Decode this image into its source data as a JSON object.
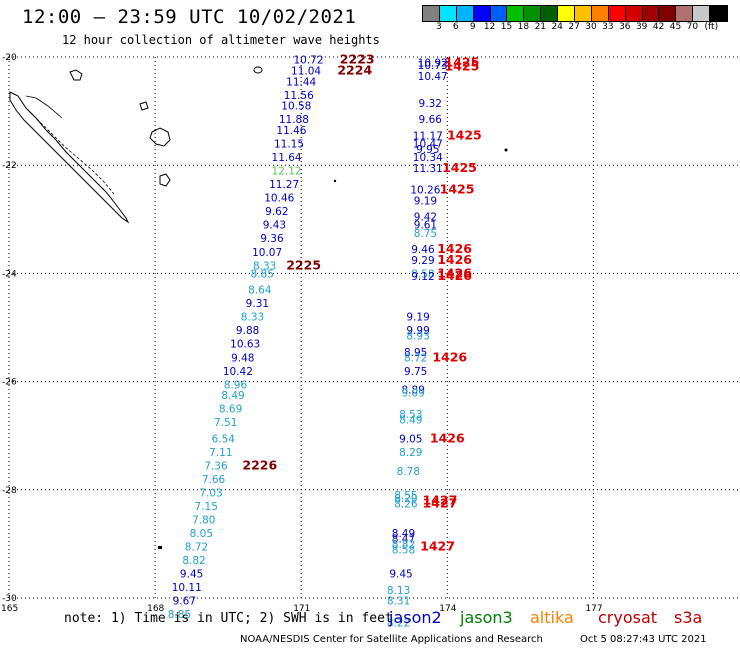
{
  "title": "12:00 – 23:59 UTC 10/02/2021",
  "subtitle": "12 hour collection of altimeter wave heights",
  "colorbar": {
    "colors": [
      "#808080",
      "#00e4ff",
      "#00b4ff",
      "#0000ff",
      "#0060ff",
      "#00c000",
      "#009000",
      "#006000",
      "#ffff00",
      "#ffc000",
      "#ff8000",
      "#ff0000",
      "#d00000",
      "#a00000",
      "#800000",
      "#b07070",
      "#c8c8c8",
      "#000000"
    ],
    "labels": [
      "3",
      "6",
      "9",
      "12",
      "15",
      "18",
      "21",
      "24",
      "27",
      "30",
      "33",
      "36",
      "39",
      "42",
      "45",
      "70",
      "(ft)"
    ]
  },
  "axes": {
    "lat_labels": [
      "-20",
      "-22",
      "-24",
      "-26",
      "-28",
      "-30"
    ],
    "lon_labels": [
      "165",
      "168",
      "171",
      "174",
      "177"
    ]
  },
  "track_west": [
    {
      "lat": -20.05,
      "lon": 171.15,
      "v": "10.72",
      "c": "#0000c0"
    },
    {
      "lat": -20.25,
      "lon": 171.1,
      "v": "11.04",
      "c": "#0000c0"
    },
    {
      "lat": -20.45,
      "lon": 171.0,
      "v": "11.44",
      "c": "#0000c0"
    },
    {
      "lat": -20.7,
      "lon": 170.95,
      "v": "11.56",
      "c": "#0000c0"
    },
    {
      "lat": -20.9,
      "lon": 170.9,
      "v": "10.58",
      "c": "#0000c0"
    },
    {
      "lat": -21.15,
      "lon": 170.85,
      "v": "11.88",
      "c": "#0000c0"
    },
    {
      "lat": -21.35,
      "lon": 170.8,
      "v": "11.46",
      "c": "#0000c0"
    },
    {
      "lat": -21.6,
      "lon": 170.75,
      "v": "11.15",
      "c": "#0000c0"
    },
    {
      "lat": -21.85,
      "lon": 170.7,
      "v": "11.64",
      "c": "#0000c0"
    },
    {
      "lat": -22.1,
      "lon": 170.7,
      "v": "12.12",
      "c": "#60c060"
    },
    {
      "lat": -22.35,
      "lon": 170.65,
      "v": "11.27",
      "c": "#0000c0"
    },
    {
      "lat": -22.6,
      "lon": 170.55,
      "v": "10.46",
      "c": "#0000c0"
    },
    {
      "lat": -22.85,
      "lon": 170.5,
      "v": "9.62",
      "c": "#0000c0"
    },
    {
      "lat": -23.1,
      "lon": 170.45,
      "v": "9.43",
      "c": "#0000c0"
    },
    {
      "lat": -23.35,
      "lon": 170.4,
      "v": "9.36",
      "c": "#0000c0"
    },
    {
      "lat": -23.6,
      "lon": 170.3,
      "v": "10.07",
      "c": "#0000c0"
    },
    {
      "lat": -23.85,
      "lon": 170.25,
      "v": "8.33",
      "c": "#20a0d0"
    },
    {
      "lat": -24.0,
      "lon": 170.2,
      "v": "8.85",
      "c": "#20a0d0"
    },
    {
      "lat": -24.3,
      "lon": 170.15,
      "v": "8.64",
      "c": "#20a0d0"
    },
    {
      "lat": -24.55,
      "lon": 170.1,
      "v": "9.31",
      "c": "#0000c0"
    },
    {
      "lat": -24.8,
      "lon": 170.0,
      "v": "8.33",
      "c": "#20a0d0"
    },
    {
      "lat": -25.05,
      "lon": 169.9,
      "v": "9.88",
      "c": "#0000c0"
    },
    {
      "lat": -25.3,
      "lon": 169.85,
      "v": "10.63",
      "c": "#0000c0"
    },
    {
      "lat": -25.55,
      "lon": 169.8,
      "v": "9.48",
      "c": "#0000c0"
    },
    {
      "lat": -25.8,
      "lon": 169.7,
      "v": "10.42",
      "c": "#0000c0"
    },
    {
      "lat": -26.05,
      "lon": 169.65,
      "v": "8.96",
      "c": "#20a0d0"
    },
    {
      "lat": -26.25,
      "lon": 169.6,
      "v": "8.49",
      "c": "#20a0d0"
    },
    {
      "lat": -26.5,
      "lon": 169.55,
      "v": "8.69",
      "c": "#20a0d0"
    },
    {
      "lat": -26.75,
      "lon": 169.45,
      "v": "7.51",
      "c": "#20a0d0"
    },
    {
      "lat": -27.05,
      "lon": 169.4,
      "v": "6.54",
      "c": "#20a0d0"
    },
    {
      "lat": -27.3,
      "lon": 169.35,
      "v": "7.11",
      "c": "#20a0d0"
    },
    {
      "lat": -27.55,
      "lon": 169.25,
      "v": "7.36",
      "c": "#20a0d0"
    },
    {
      "lat": -27.8,
      "lon": 169.2,
      "v": "7.66",
      "c": "#20a0d0"
    },
    {
      "lat": -28.05,
      "lon": 169.15,
      "v": "7.03",
      "c": "#20a0d0"
    },
    {
      "lat": -28.3,
      "lon": 169.05,
      "v": "7.15",
      "c": "#20a0d0"
    },
    {
      "lat": -28.55,
      "lon": 169.0,
      "v": "7.80",
      "c": "#20a0d0"
    },
    {
      "lat": -28.8,
      "lon": 168.95,
      "v": "8.05",
      "c": "#20a0d0"
    },
    {
      "lat": -29.05,
      "lon": 168.85,
      "v": "8.72",
      "c": "#20a0d0"
    },
    {
      "lat": -29.3,
      "lon": 168.8,
      "v": "8.82",
      "c": "#20a0d0"
    },
    {
      "lat": -29.55,
      "lon": 168.75,
      "v": "9.45",
      "c": "#0000c0"
    },
    {
      "lat": -29.8,
      "lon": 168.65,
      "v": "10.11",
      "c": "#0000c0"
    },
    {
      "lat": -30.05,
      "lon": 168.6,
      "v": "9.67",
      "c": "#0000c0"
    },
    {
      "lat": -30.3,
      "lon": 168.5,
      "v": "8.85",
      "c": "#20a0d0"
    }
  ],
  "track_east": [
    {
      "lat": -20.1,
      "lon": 173.7,
      "v": "10.92",
      "c": "#0000c0"
    },
    {
      "lat": -20.15,
      "lon": 173.7,
      "v": "10.73",
      "c": "#0000c0"
    },
    {
      "lat": -20.35,
      "lon": 173.7,
      "v": "10.47",
      "c": "#0000c0"
    },
    {
      "lat": -20.85,
      "lon": 173.65,
      "v": "9.32",
      "c": "#0000c0"
    },
    {
      "lat": -21.15,
      "lon": 173.65,
      "v": "9.66",
      "c": "#0000c0"
    },
    {
      "lat": -21.45,
      "lon": 173.6,
      "v": "11.17",
      "c": "#0000c0"
    },
    {
      "lat": -21.6,
      "lon": 173.6,
      "v": "10.47",
      "c": "#0000c0"
    },
    {
      "lat": -21.7,
      "lon": 173.6,
      "v": "9.95",
      "c": "#0000c0"
    },
    {
      "lat": -21.85,
      "lon": 173.6,
      "v": "10.34",
      "c": "#0000c0"
    },
    {
      "lat": -22.05,
      "lon": 173.6,
      "v": "11.31",
      "c": "#0000c0"
    },
    {
      "lat": -22.45,
      "lon": 173.55,
      "v": "10.26",
      "c": "#0000c0"
    },
    {
      "lat": -22.65,
      "lon": 173.55,
      "v": "9.19",
      "c": "#0000c0"
    },
    {
      "lat": -22.95,
      "lon": 173.55,
      "v": "9.42",
      "c": "#0000c0"
    },
    {
      "lat": -23.1,
      "lon": 173.55,
      "v": "9.61",
      "c": "#0000c0"
    },
    {
      "lat": -23.25,
      "lon": 173.55,
      "v": "8.75",
      "c": "#20a0d0"
    },
    {
      "lat": -23.55,
      "lon": 173.5,
      "v": "9.46",
      "c": "#0000c0"
    },
    {
      "lat": -23.75,
      "lon": 173.5,
      "v": "9.29",
      "c": "#0000c0"
    },
    {
      "lat": -24.0,
      "lon": 173.5,
      "v": "8.58",
      "c": "#20a0d0"
    },
    {
      "lat": -24.05,
      "lon": 173.5,
      "v": "9.12",
      "c": "#0000c0"
    },
    {
      "lat": -24.8,
      "lon": 173.4,
      "v": "9.19",
      "c": "#0000c0"
    },
    {
      "lat": -25.05,
      "lon": 173.4,
      "v": "9.99",
      "c": "#0000c0"
    },
    {
      "lat": -25.15,
      "lon": 173.4,
      "v": "8.93",
      "c": "#20a0d0"
    },
    {
      "lat": -25.45,
      "lon": 173.35,
      "v": "8.95",
      "c": "#0000c0"
    },
    {
      "lat": -25.55,
      "lon": 173.35,
      "v": "8.72",
      "c": "#20a0d0"
    },
    {
      "lat": -25.8,
      "lon": 173.35,
      "v": "9.75",
      "c": "#0000c0"
    },
    {
      "lat": -26.15,
      "lon": 173.3,
      "v": "8.89",
      "c": "#0000c0"
    },
    {
      "lat": -26.2,
      "lon": 173.3,
      "v": "9.09",
      "c": "#20a0d0"
    },
    {
      "lat": -26.6,
      "lon": 173.25,
      "v": "8.53",
      "c": "#20a0d0"
    },
    {
      "lat": -26.7,
      "lon": 173.25,
      "v": "8.49",
      "c": "#20a0d0"
    },
    {
      "lat": -27.05,
      "lon": 173.25,
      "v": "9.05",
      "c": "#0000c0"
    },
    {
      "lat": -27.3,
      "lon": 173.25,
      "v": "8.29",
      "c": "#20a0d0"
    },
    {
      "lat": -27.65,
      "lon": 173.2,
      "v": "8.78",
      "c": "#20a0d0"
    },
    {
      "lat": -28.1,
      "lon": 173.15,
      "v": "8.55",
      "c": "#20a0d0"
    },
    {
      "lat": -28.15,
      "lon": 173.15,
      "v": "8.20",
      "c": "#20a0d0"
    },
    {
      "lat": -28.25,
      "lon": 173.15,
      "v": "8.26",
      "c": "#20a0d0"
    },
    {
      "lat": -28.8,
      "lon": 173.1,
      "v": "8.49",
      "c": "#0000c0"
    },
    {
      "lat": -28.9,
      "lon": 173.1,
      "v": "8.47",
      "c": "#0000c0"
    },
    {
      "lat": -29.0,
      "lon": 173.1,
      "v": "8.82",
      "c": "#20a0d0"
    },
    {
      "lat": -29.1,
      "lon": 173.1,
      "v": "8.58",
      "c": "#20a0d0"
    },
    {
      "lat": -29.55,
      "lon": 173.05,
      "v": "9.45",
      "c": "#0000c0"
    },
    {
      "lat": -29.85,
      "lon": 173.0,
      "v": "8.13",
      "c": "#20a0d0"
    },
    {
      "lat": -30.05,
      "lon": 173.0,
      "v": "8.31",
      "c": "#20a0d0"
    },
    {
      "lat": -30.45,
      "lon": 173.0,
      "v": "8.22",
      "c": "#20a0d0"
    }
  ],
  "time_labels": [
    {
      "lat": -20.05,
      "lon": 172.15,
      "t": "2223",
      "c": "#800000"
    },
    {
      "lat": -20.25,
      "lon": 172.1,
      "t": "2224",
      "c": "#800000"
    },
    {
      "lat": -23.85,
      "lon": 171.05,
      "t": "2225",
      "c": "#800000"
    },
    {
      "lat": -27.55,
      "lon": 170.15,
      "t": "2226",
      "c": "#800000"
    },
    {
      "lat": -20.1,
      "lon": 174.3,
      "t": "1425",
      "c": "#e00000"
    },
    {
      "lat": -20.18,
      "lon": 174.3,
      "t": "1425",
      "c": "#e00000"
    },
    {
      "lat": -21.45,
      "lon": 174.35,
      "t": "1425",
      "c": "#e00000"
    },
    {
      "lat": -22.05,
      "lon": 174.25,
      "t": "1425",
      "c": "#e00000"
    },
    {
      "lat": -22.45,
      "lon": 174.2,
      "t": "1425",
      "c": "#e00000"
    },
    {
      "lat": -23.55,
      "lon": 174.15,
      "t": "1426",
      "c": "#e00000"
    },
    {
      "lat": -23.75,
      "lon": 174.15,
      "t": "1426",
      "c": "#e00000"
    },
    {
      "lat": -24.0,
      "lon": 174.15,
      "t": "1426",
      "c": "#e00000"
    },
    {
      "lat": -24.05,
      "lon": 174.15,
      "t": "1426",
      "c": "#e00000"
    },
    {
      "lat": -25.55,
      "lon": 174.05,
      "t": "1426",
      "c": "#e00000"
    },
    {
      "lat": -27.05,
      "lon": 174.0,
      "t": "1426",
      "c": "#e00000"
    },
    {
      "lat": -28.2,
      "lon": 173.85,
      "t": "1427",
      "c": "#e00000"
    },
    {
      "lat": -28.25,
      "lon": 173.85,
      "t": "1427",
      "c": "#e00000"
    },
    {
      "lat": -29.05,
      "lon": 173.8,
      "t": "1427",
      "c": "#e00000"
    }
  ],
  "footnote": "note: 1) Time is in UTC; 2) SWH is in feet",
  "satellites": [
    {
      "name": "jason2",
      "color": "#0000c0"
    },
    {
      "name": "jason3",
      "color": "#008000"
    },
    {
      "name": "altika",
      "color": "#ff8000"
    },
    {
      "name": "cryosat",
      "color": "#c00000"
    },
    {
      "name": "s3a",
      "color": "#c00000"
    }
  ],
  "credit": "NOAA/NESDIS Center for Satellite Applications and Research",
  "timestamp": "Oct  5 08:27:43 UTC 2021"
}
